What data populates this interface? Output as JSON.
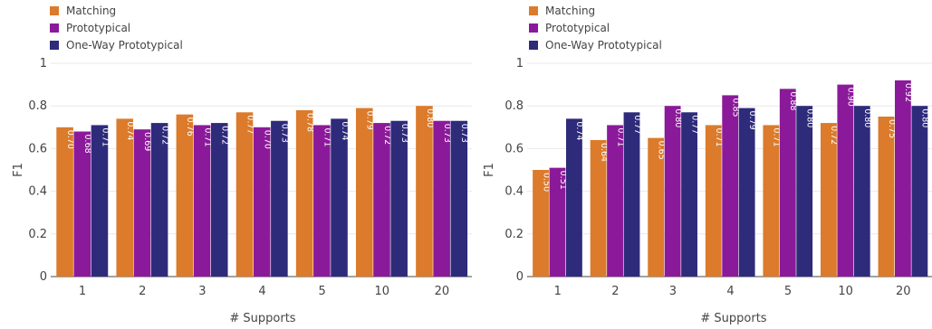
{
  "colors": {
    "matching": "#db7b2b",
    "prototypical": "#8b1a9a",
    "one_way": "#2e2b7a",
    "grid": "#e8e8e8",
    "axis": "#444444"
  },
  "legend": [
    "Matching",
    "Prototypical",
    "One-Way Prototypical"
  ],
  "chart_data": [
    {
      "type": "bar",
      "title": "",
      "xlabel": "# Supports",
      "ylabel": "F1",
      "ylim": [
        0,
        1
      ],
      "yticks": [
        "0",
        "0.2",
        "0.4",
        "0.6",
        "0.8",
        "1"
      ],
      "grid": true,
      "legend_position": "top-left",
      "categories": [
        "1",
        "2",
        "3",
        "4",
        "5",
        "10",
        "20"
      ],
      "series": [
        {
          "name": "Matching",
          "values": [
            0.7,
            0.74,
            0.76,
            0.77,
            0.78,
            0.79,
            0.8
          ],
          "labels": [
            "0.70",
            "0.74",
            "0.76",
            "0.77",
            "0.78",
            "0.79",
            "0.80"
          ]
        },
        {
          "name": "Prototypical",
          "values": [
            0.68,
            0.69,
            0.71,
            0.7,
            0.71,
            0.72,
            0.73
          ],
          "labels": [
            "0.68",
            "0.69",
            "0.71",
            "0.70",
            "0.71",
            "0.72",
            "0.73"
          ]
        },
        {
          "name": "One-Way Prototypical",
          "values": [
            0.71,
            0.72,
            0.72,
            0.73,
            0.74,
            0.73,
            0.73
          ],
          "labels": [
            "0.71",
            "0.72",
            "0.72",
            "0.73",
            "0.74",
            "0.73",
            "0.73"
          ]
        }
      ]
    },
    {
      "type": "bar",
      "title": "",
      "xlabel": "# Supports",
      "ylabel": "F1",
      "ylim": [
        0,
        1
      ],
      "yticks": [
        "0",
        "0.2",
        "0.4",
        "0.6",
        "0.8",
        "1"
      ],
      "grid": true,
      "legend_position": "top-left",
      "categories": [
        "1",
        "2",
        "3",
        "4",
        "5",
        "10",
        "20"
      ],
      "series": [
        {
          "name": "Matching",
          "values": [
            0.5,
            0.64,
            0.65,
            0.71,
            0.71,
            0.72,
            0.75
          ],
          "labels": [
            "0.50",
            "0.64",
            "0.65",
            "0.71",
            "0.71",
            "0.72",
            "0.75"
          ]
        },
        {
          "name": "Prototypical",
          "values": [
            0.51,
            0.71,
            0.8,
            0.85,
            0.88,
            0.9,
            0.92
          ],
          "labels": [
            "0.51",
            "0.71",
            "0.80",
            "0.85",
            "0.88",
            "0.90",
            "0.92"
          ]
        },
        {
          "name": "One-Way Prototypical",
          "values": [
            0.74,
            0.77,
            0.77,
            0.79,
            0.8,
            0.8,
            0.8
          ],
          "labels": [
            "0.74",
            "0.77",
            "0.77",
            "0.79",
            "0.80",
            "0.80",
            "0.80"
          ]
        }
      ]
    }
  ]
}
